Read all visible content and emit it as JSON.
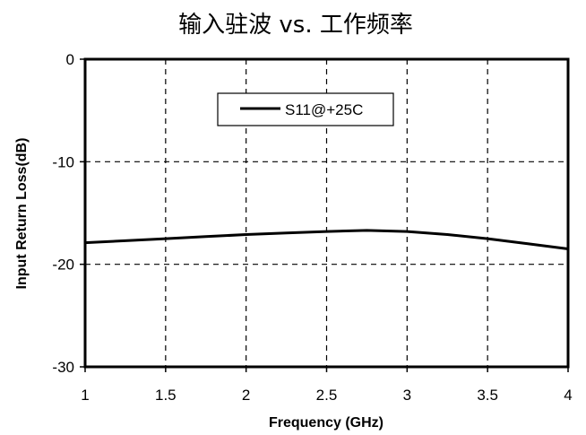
{
  "chart_data": {
    "type": "line",
    "title": "输入驻波 vs. 工作频率",
    "xlabel": "Frequency (GHz)",
    "ylabel": "Input Return Loss(dB)",
    "xlim": [
      1,
      4
    ],
    "ylim": [
      -30,
      0
    ],
    "x_ticks": [
      "1",
      "1.5",
      "2",
      "2.5",
      "3",
      "3.5",
      "4"
    ],
    "y_ticks": [
      "0",
      "-10",
      "-20",
      "-30"
    ],
    "grid": true,
    "legend_position": "top-center",
    "series": [
      {
        "name": "S11@+25C",
        "color": "#000000",
        "x": [
          1.0,
          1.25,
          1.5,
          1.75,
          2.0,
          2.25,
          2.5,
          2.75,
          3.0,
          3.25,
          3.5,
          3.75,
          4.0
        ],
        "y": [
          -17.9,
          -17.7,
          -17.5,
          -17.3,
          -17.1,
          -16.95,
          -16.8,
          -16.7,
          -16.8,
          -17.1,
          -17.5,
          -18.0,
          -18.5
        ]
      }
    ]
  }
}
